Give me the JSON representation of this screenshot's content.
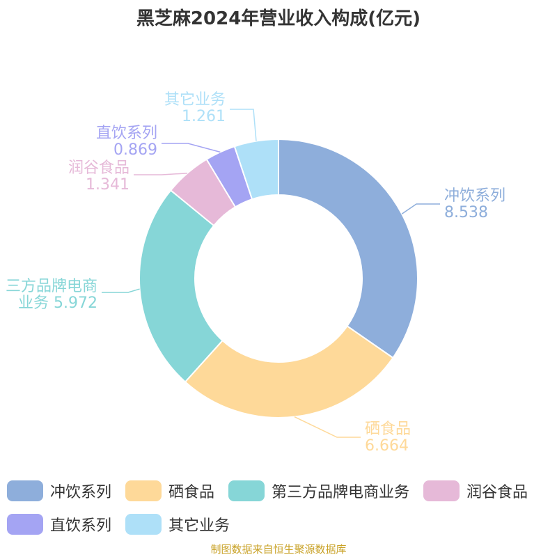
{
  "title": "黑芝麻2024年营业收入构成(亿元)",
  "source": "制图数据来自恒生聚源数据库",
  "chart_data": {
    "type": "pie",
    "subtype": "donut",
    "title": "黑芝麻2024年营业收入构成(亿元)",
    "series": [
      {
        "name": "冲饮系列",
        "value": 8.538,
        "label_lines": [
          "冲饮系列",
          "8.538"
        ],
        "color": "#8eaedb"
      },
      {
        "name": "硒食品",
        "value": 6.664,
        "label_lines": [
          "硒食品",
          "6.664"
        ],
        "color": "#fed999"
      },
      {
        "name": "第三方品牌电商业务",
        "value": 5.972,
        "label_lines": [
          "三方品牌电商",
          "业务 5.972"
        ],
        "color": "#86d6d7"
      },
      {
        "name": "润谷食品",
        "value": 1.341,
        "label_lines": [
          "润谷食品",
          "1.341"
        ],
        "color": "#e6b9d8"
      },
      {
        "name": "直饮系列",
        "value": 0.869,
        "label_lines": [
          "直饮系列",
          "0.869"
        ],
        "color": "#a4a4f3"
      },
      {
        "name": "其它业务",
        "value": 1.261,
        "label_lines": [
          "其它业务",
          "1.261"
        ],
        "color": "#aee0f8"
      }
    ],
    "legend_position": "bottom"
  }
}
